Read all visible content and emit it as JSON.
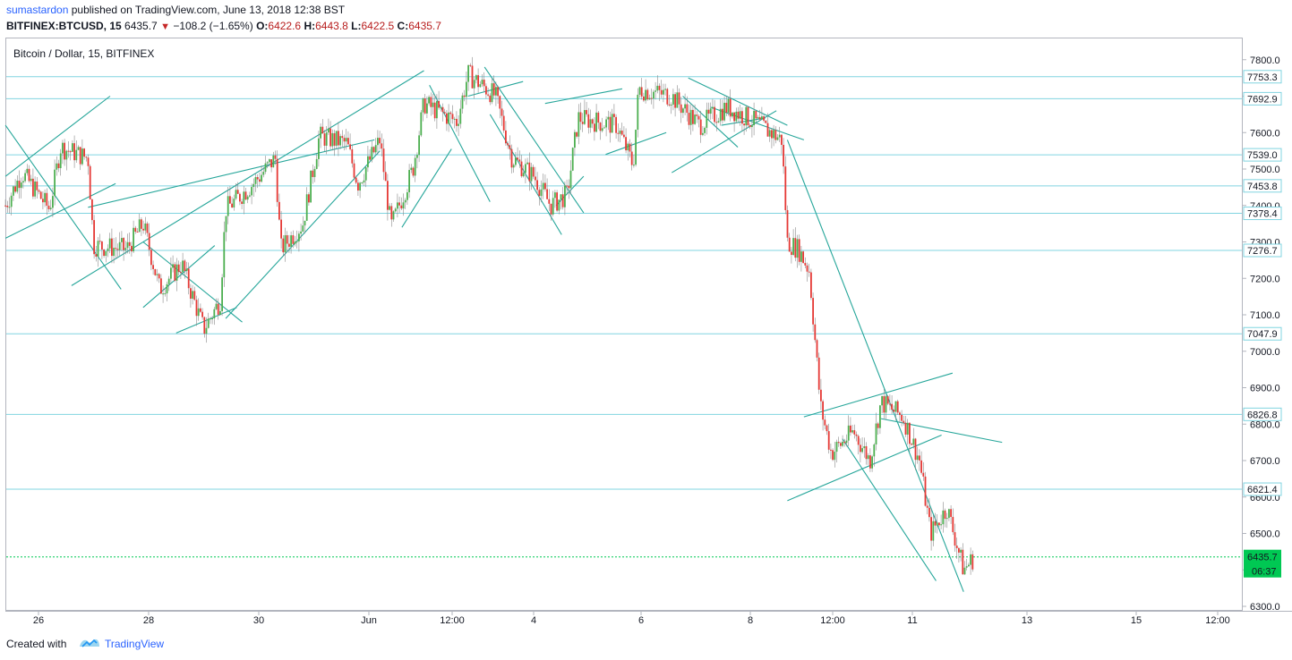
{
  "header": {
    "author": "sumastardon",
    "published_text": "published on TradingView.com, June 13, 2018 12:38 BST",
    "symbol": "BITFINEX:BTCUSD, 15",
    "price": "6435.7",
    "change": "−108.2 (−1.65%)",
    "o_label": "O:",
    "o_value": "6422.6",
    "h_label": "H:",
    "h_value": "6443.8",
    "l_label": "L:",
    "l_value": "6422.5",
    "c_label": "C:",
    "c_value": "6435.7"
  },
  "footer": {
    "created_with": "Created with",
    "brand": "TradingView"
  },
  "colors": {
    "up": "#4caf50",
    "down": "#e53935",
    "trendline": "#26a69a",
    "level": "#80d4e0",
    "current_price": "#00c853"
  },
  "chart_data": {
    "type": "candlestick",
    "title": "Bitcoin / Dollar, 15, BITFINEX",
    "ylim": [
      6290,
      7840
    ],
    "y_ticks": [
      6300,
      6400,
      6500,
      6600,
      6700,
      6800,
      6900,
      7000,
      7100,
      7200,
      7300,
      7400,
      7500,
      7600,
      7700,
      7800
    ],
    "y_tick_labels": [
      "6300.0",
      "6400.0",
      "6500.0",
      "6600.0",
      "6700.0",
      "6800.0",
      "6900.0",
      "7000.0",
      "7100.0",
      "7200.0",
      "7300.0",
      "7400.0",
      "7500.0",
      "7600.0",
      "7700.0",
      "7800.0"
    ],
    "x_ticks": [
      {
        "label": "26",
        "day": 0
      },
      {
        "label": "28",
        "day": 2
      },
      {
        "label": "30",
        "day": 4
      },
      {
        "label": "Jun",
        "day": 6
      },
      {
        "label": "12:00",
        "day": 7
      },
      {
        "label": "4",
        "day": 8
      },
      {
        "label": "6",
        "day": 10
      },
      {
        "label": "8",
        "day": 12
      },
      {
        "label": "12:00",
        "day": 13
      },
      {
        "label": "11",
        "day": 14
      },
      {
        "label": "13",
        "day": 15.33
      },
      {
        "label": "15",
        "day": 16.66
      },
      {
        "label": "12:00",
        "day": 17.66
      }
    ],
    "levels": [
      7753.3,
      7692.9,
      7539.0,
      7453.8,
      7378.4,
      7276.7,
      7047.9,
      6826.8,
      6621.4
    ],
    "level_labels": [
      "7753.3",
      "7692.9",
      "7539.0",
      "7453.8",
      "7378.4",
      "7276.7",
      "7047.9",
      "6826.8",
      "6621.4"
    ],
    "current_price": 6435.7,
    "current_price_label": "6435.7",
    "countdown": "06:37",
    "path": [
      {
        "day": -0.6,
        "price": 7400
      },
      {
        "day": -0.3,
        "price": 7490
      },
      {
        "day": 0.2,
        "price": 7390
      },
      {
        "day": 0.4,
        "price": 7560
      },
      {
        "day": 0.9,
        "price": 7530
      },
      {
        "day": 1.0,
        "price": 7290
      },
      {
        "day": 1.6,
        "price": 7280
      },
      {
        "day": 1.9,
        "price": 7350
      },
      {
        "day": 2.2,
        "price": 7170
      },
      {
        "day": 2.6,
        "price": 7240
      },
      {
        "day": 3.0,
        "price": 7060
      },
      {
        "day": 3.3,
        "price": 7140
      },
      {
        "day": 3.4,
        "price": 7390
      },
      {
        "day": 3.9,
        "price": 7460
      },
      {
        "day": 4.3,
        "price": 7530
      },
      {
        "day": 4.4,
        "price": 7280
      },
      {
        "day": 4.8,
        "price": 7350
      },
      {
        "day": 5.1,
        "price": 7590
      },
      {
        "day": 5.6,
        "price": 7570
      },
      {
        "day": 5.8,
        "price": 7460
      },
      {
        "day": 6.2,
        "price": 7580
      },
      {
        "day": 6.4,
        "price": 7340
      },
      {
        "day": 6.8,
        "price": 7500
      },
      {
        "day": 7.0,
        "price": 7680
      },
      {
        "day": 7.6,
        "price": 7630
      },
      {
        "day": 7.8,
        "price": 7760
      },
      {
        "day": 8.3,
        "price": 7700
      },
      {
        "day": 8.6,
        "price": 7530
      },
      {
        "day": 9.0,
        "price": 7480
      },
      {
        "day": 9.3,
        "price": 7400
      },
      {
        "day": 9.6,
        "price": 7430
      },
      {
        "day": 9.8,
        "price": 7640
      },
      {
        "day": 10.5,
        "price": 7620
      },
      {
        "day": 10.8,
        "price": 7510
      },
      {
        "day": 10.9,
        "price": 7720
      },
      {
        "day": 11.5,
        "price": 7700
      },
      {
        "day": 12.0,
        "price": 7620
      },
      {
        "day": 12.5,
        "price": 7670
      },
      {
        "day": 13.0,
        "price": 7630
      },
      {
        "day": 13.5,
        "price": 7580
      },
      {
        "day": 13.6,
        "price": 7300
      },
      {
        "day": 13.8,
        "price": 7280
      },
      {
        "day": 14.0,
        "price": 7220
      },
      {
        "day": 14.2,
        "price": 6850
      },
      {
        "day": 14.4,
        "price": 6720
      },
      {
        "day": 14.8,
        "price": 6780
      },
      {
        "day": 15.1,
        "price": 6700
      },
      {
        "day": 15.3,
        "price": 6860
      },
      {
        "day": 15.7,
        "price": 6820
      },
      {
        "day": 16.0,
        "price": 6700
      },
      {
        "day": 16.2,
        "price": 6500
      },
      {
        "day": 16.5,
        "price": 6570
      },
      {
        "day": 16.8,
        "price": 6400
      },
      {
        "day": 17.0,
        "price": 6436
      }
    ]
  }
}
